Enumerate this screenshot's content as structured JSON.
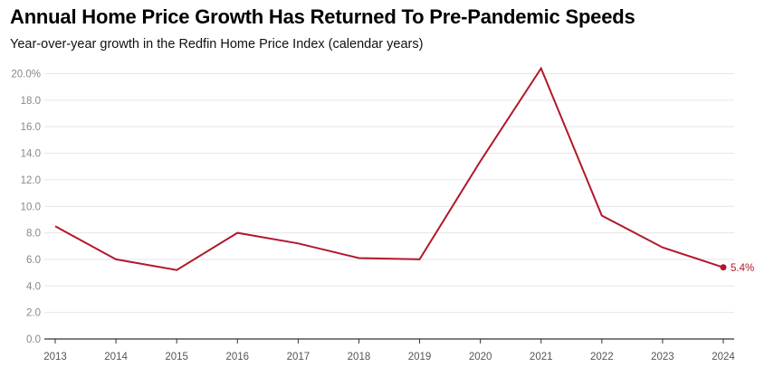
{
  "title": "Annual Home Price Growth Has Returned To Pre-Pandemic Speeds",
  "subtitle": "Year-over-year growth in the Redfin Home Price Index (calendar years)",
  "colors": {
    "line": "#b2182b",
    "grid": "#e6e6e6",
    "axis": "#333333"
  },
  "chart_data": {
    "type": "line",
    "title": "Annual Home Price Growth Has Returned To Pre-Pandemic Speeds",
    "subtitle": "Year-over-year growth in the Redfin Home Price Index (calendar years)",
    "categories": [
      "2013",
      "2014",
      "2015",
      "2016",
      "2017",
      "2018",
      "2019",
      "2020",
      "2021",
      "2022",
      "2023",
      "2024"
    ],
    "values": [
      8.5,
      6.0,
      5.2,
      8.0,
      7.2,
      6.1,
      6.0,
      13.4,
      20.4,
      9.3,
      6.9,
      5.4
    ],
    "yticks": [
      "0.0",
      "2.0",
      "4.0",
      "6.0",
      "8.0",
      "10.0",
      "12.0",
      "14.0",
      "16.0",
      "18.0",
      "20.0%"
    ],
    "ylim": [
      0,
      20
    ],
    "end_label": "5.4%",
    "grid": true,
    "legend": "none"
  }
}
